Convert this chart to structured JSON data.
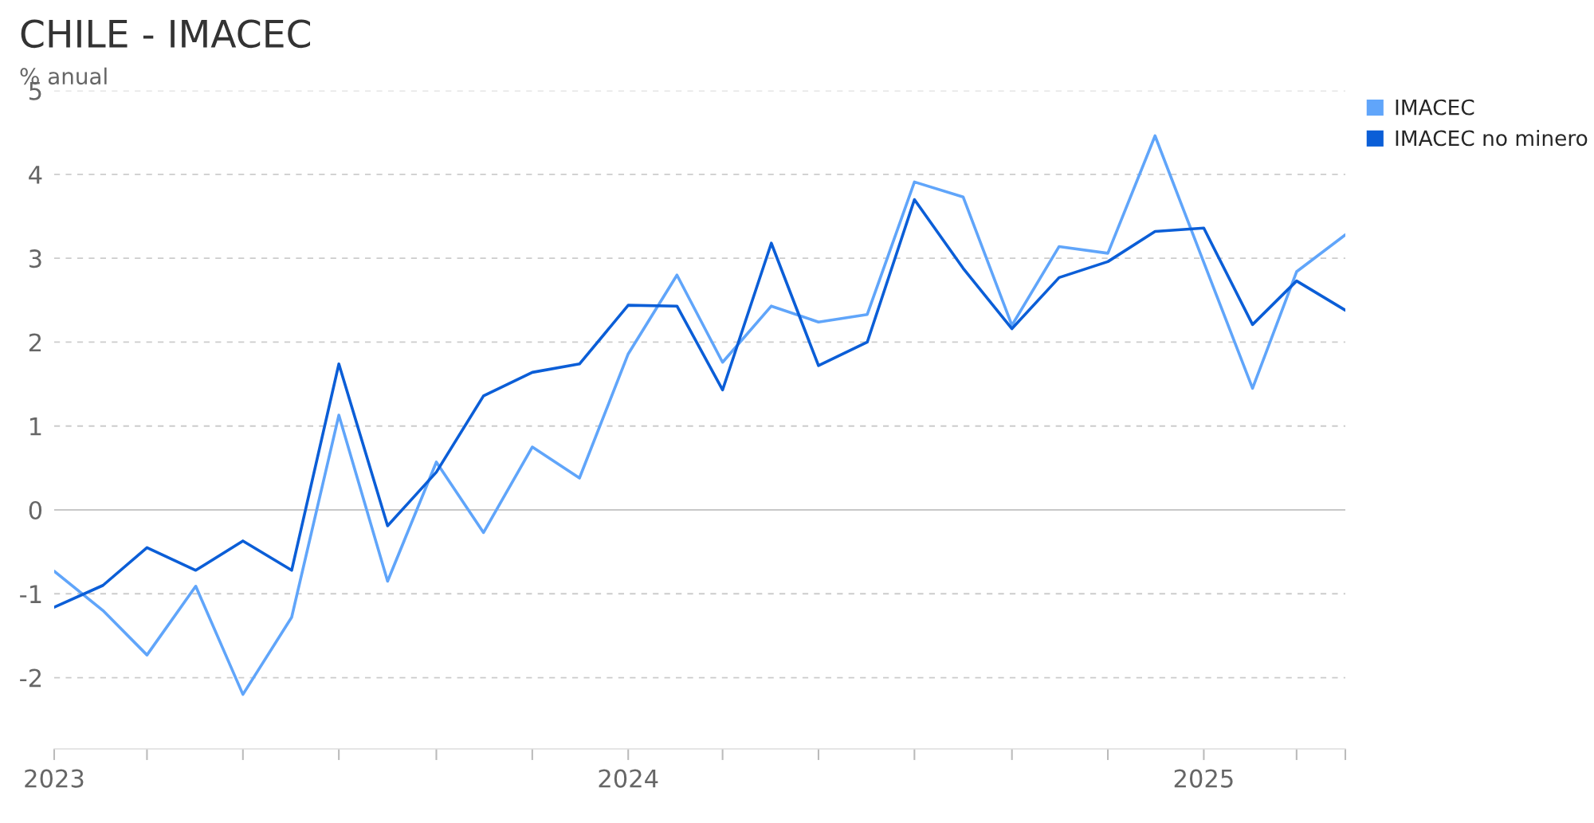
{
  "chart_data": {
    "type": "line",
    "title": "CHILE - IMACEC",
    "subtitle": "% anual",
    "x": [
      "2023-01",
      "2023-02",
      "2023-03",
      "2023-04",
      "2023-05",
      "2023-06",
      "2023-07",
      "2023-08",
      "2023-09",
      "2023-10",
      "2023-11",
      "2023-12",
      "2024-01",
      "2024-02",
      "2024-03",
      "2024-04",
      "2024-05",
      "2024-06",
      "2024-07",
      "2024-08",
      "2024-09",
      "2024-10",
      "2024-11",
      "2024-12",
      "2025-01",
      "2025-02",
      "2025-03",
      "2025-04"
    ],
    "series": [
      {
        "name": "IMACEC",
        "color": "#60a5fa",
        "values": [
          -0.73,
          -1.2,
          -1.73,
          -0.91,
          -2.2,
          -1.28,
          1.13,
          -0.85,
          0.57,
          -0.27,
          0.75,
          0.38,
          1.86,
          2.8,
          1.76,
          2.43,
          2.24,
          2.33,
          3.91,
          3.73,
          2.2,
          3.14,
          3.06,
          4.46,
          2.95,
          1.45,
          2.84,
          3.28
        ]
      },
      {
        "name": "IMACEC no minero",
        "color": "#0b5ed7",
        "values": [
          -1.16,
          -0.9,
          -0.45,
          -0.72,
          -0.37,
          -0.72,
          1.74,
          -0.19,
          0.45,
          1.36,
          1.64,
          1.74,
          2.44,
          2.43,
          1.43,
          3.18,
          1.72,
          2.0,
          3.7,
          2.88,
          2.16,
          2.77,
          2.96,
          3.32,
          3.36,
          2.21,
          2.73,
          2.38
        ]
      }
    ],
    "xlim": [
      "2023-01",
      "2025-04"
    ],
    "xticks": [
      {
        "value": "2023-01",
        "label": "2023"
      },
      {
        "value": "2023-03",
        "label": null
      },
      {
        "value": "2023-05",
        "label": null
      },
      {
        "value": "2023-07",
        "label": null
      },
      {
        "value": "2023-09",
        "label": null
      },
      {
        "value": "2023-11",
        "label": null
      },
      {
        "value": "2024-01",
        "label": "2024"
      },
      {
        "value": "2024-03",
        "label": null
      },
      {
        "value": "2024-05",
        "label": null
      },
      {
        "value": "2024-07",
        "label": null
      },
      {
        "value": "2024-09",
        "label": null
      },
      {
        "value": "2024-11",
        "label": null
      },
      {
        "value": "2025-01",
        "label": "2025"
      },
      {
        "value": "2025-03",
        "label": null
      },
      {
        "value": "2025-04",
        "label": null
      }
    ],
    "ylim": [
      -2.85,
      5
    ],
    "yticks": [
      -2,
      -1,
      0,
      1,
      2,
      3,
      4,
      5
    ],
    "grid": "y",
    "ref_lines": [
      {
        "axis": "y",
        "value": 0,
        "color": "#c8c8c8",
        "line_style": "solid"
      }
    ],
    "legend": "top right",
    "line_style": "solid",
    "marker": "none"
  }
}
